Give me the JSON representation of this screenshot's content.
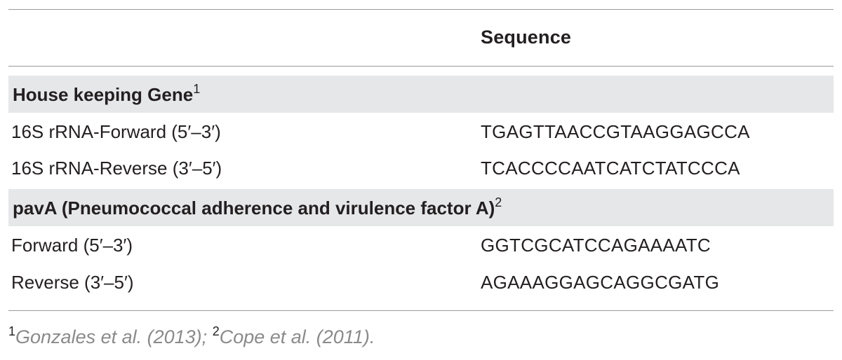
{
  "header": {
    "sequence_label": "Sequence"
  },
  "groups": [
    {
      "title": "House keeping Gene",
      "footnote_marker": "1",
      "rows": [
        {
          "label": "16S rRNA-Forward (5′–3′)",
          "sequence": "TGAGTTAACCGTAAGGAGCCA"
        },
        {
          "label": "16S rRNA-Reverse (3′–5′)",
          "sequence": "TCACCCCAATCATCTATCCCA"
        }
      ]
    },
    {
      "title": "pavA (Pneumococcal adherence and virulence factor A)",
      "footnote_marker": "2",
      "rows": [
        {
          "label": "Forward (5′–3′)",
          "sequence": "GGTCGCATCCAGAAAATC"
        },
        {
          "label": "Reverse (3′–5′)",
          "sequence": "AGAAAGGAGCAGGCGATG"
        }
      ]
    }
  ],
  "footnotes": {
    "marker_1": "1",
    "ref_1": "Gonzales et al. (2013)",
    "separator": "; ",
    "marker_2": "2",
    "ref_2": "Cope et al. (2011)",
    "end": "."
  }
}
